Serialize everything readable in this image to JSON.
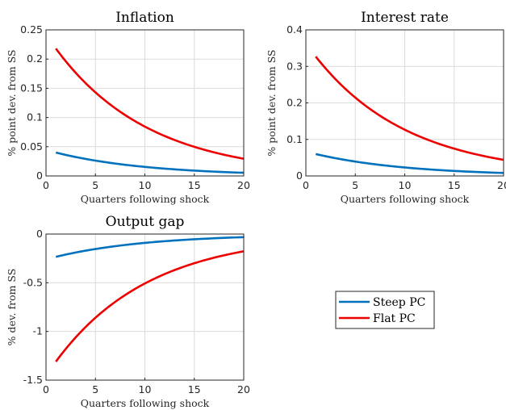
{
  "colors": {
    "steep": "#0072BD",
    "flat": "#EE0000"
  },
  "legend": {
    "placement": "right-middle",
    "entries": [
      "Steep PC",
      "Flat PC"
    ]
  },
  "chart_data": [
    {
      "type": "line",
      "title": "Inflation",
      "xlabel": "Quarters following shock",
      "ylabel": "% point dev. from SS",
      "xlim": [
        0,
        20
      ],
      "ylim": [
        0,
        0.25
      ],
      "grid": true,
      "xticks": [
        0,
        5,
        10,
        15,
        20
      ],
      "xtick_labels": [
        "0",
        "5",
        "10",
        "15",
        "20"
      ],
      "yticks": [
        0,
        0.05,
        0.1,
        0.15,
        0.2,
        0.25
      ],
      "ytick_labels": [
        "0",
        "0.05",
        "0.1",
        "0.15",
        "0.2",
        "0.25"
      ],
      "series": [
        {
          "name": "Steep PC",
          "color_key": "steep",
          "x_start": 1,
          "x_end": 20,
          "y_start": 0.04,
          "decay": 0.9
        },
        {
          "name": "Flat PC",
          "color_key": "flat",
          "x_start": 1,
          "x_end": 20,
          "y_start": 0.218,
          "decay": 0.9
        }
      ]
    },
    {
      "type": "line",
      "title": "Interest rate",
      "xlabel": "Quarters following shock",
      "ylabel": "% point dev. from SS",
      "xlim": [
        0,
        20
      ],
      "ylim": [
        0,
        0.4
      ],
      "grid": true,
      "xticks": [
        0,
        5,
        10,
        15,
        20
      ],
      "xtick_labels": [
        "0",
        "5",
        "10",
        "15",
        "20"
      ],
      "yticks": [
        0,
        0.1,
        0.2,
        0.3,
        0.4
      ],
      "ytick_labels": [
        "0",
        "0.1",
        "0.2",
        "0.3",
        "0.4"
      ],
      "series": [
        {
          "name": "Steep PC",
          "color_key": "steep",
          "x_start": 1,
          "x_end": 20,
          "y_start": 0.06,
          "decay": 0.9
        },
        {
          "name": "Flat PC",
          "color_key": "flat",
          "x_start": 1,
          "x_end": 20,
          "y_start": 0.327,
          "decay": 0.9
        }
      ]
    },
    {
      "type": "line",
      "title": "Output gap",
      "xlabel": "Quarters following shock",
      "ylabel": "% dev. from SS",
      "xlim": [
        0,
        20
      ],
      "ylim": [
        -1.5,
        0
      ],
      "grid": true,
      "xticks": [
        0,
        5,
        10,
        15,
        20
      ],
      "xtick_labels": [
        "0",
        "5",
        "10",
        "15",
        "20"
      ],
      "yticks": [
        -1.5,
        -1,
        -0.5,
        0
      ],
      "ytick_labels": [
        "-1.5",
        "-1",
        "-0.5",
        "0"
      ],
      "series": [
        {
          "name": "Steep PC",
          "color_key": "steep",
          "x_start": 1,
          "x_end": 20,
          "y_start": -0.234,
          "decay": 0.9
        },
        {
          "name": "Flat PC",
          "color_key": "flat",
          "x_start": 1,
          "x_end": 20,
          "y_start": -1.31,
          "decay": 0.9
        }
      ]
    }
  ]
}
